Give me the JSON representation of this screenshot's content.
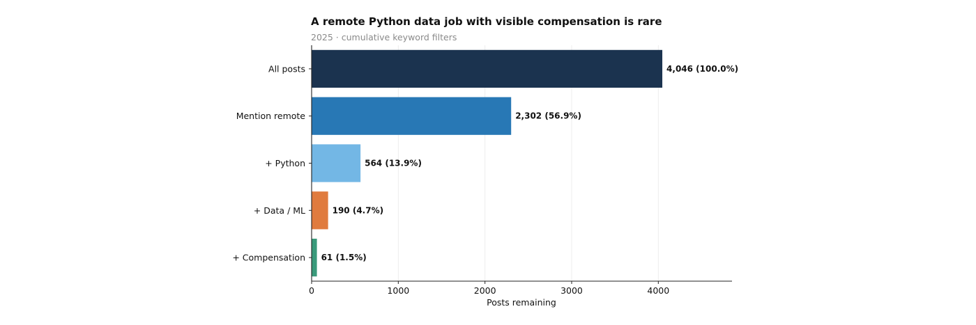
{
  "chart_data": {
    "type": "bar",
    "orientation": "horizontal",
    "title": "A remote Python data job with visible compensation is rare",
    "subtitle": "2025 · cumulative keyword filters",
    "xlabel": "Posts remaining",
    "ylabel": "",
    "categories": [
      "All posts",
      "Mention remote",
      "+ Python",
      "+ Data / ML",
      "+ Compensation"
    ],
    "values": [
      4046,
      2302,
      564,
      190,
      61
    ],
    "data_labels": [
      "4,046  (100.0%)",
      "2,302  (56.9%)",
      "564  (13.9%)",
      "190  (4.7%)",
      "61  (1.5%)"
    ],
    "colors": [
      "#1b334f",
      "#2878b5",
      "#73b7e5",
      "#e07b3e",
      "#3a9a7b"
    ],
    "xlim": [
      0,
      4850
    ],
    "xticks": [
      0,
      1000,
      2000,
      3000,
      4000
    ],
    "xtick_labels": [
      "0",
      "1000",
      "2000",
      "3000",
      "4000"
    ],
    "grid": "vertical",
    "legend": "none"
  }
}
